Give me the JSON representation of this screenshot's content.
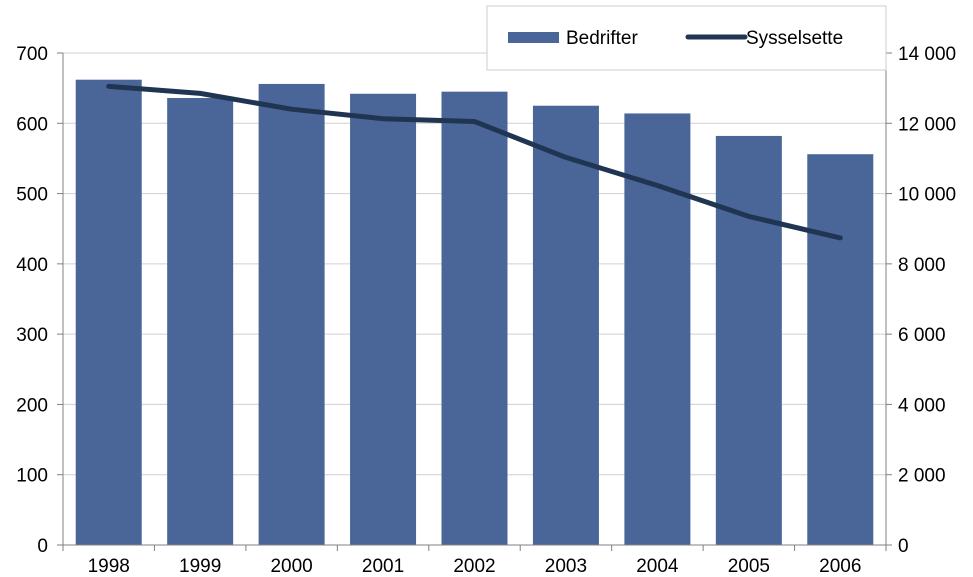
{
  "chart_data": {
    "type": "bar",
    "categories": [
      "1998",
      "1999",
      "2000",
      "2001",
      "2002",
      "2003",
      "2004",
      "2005",
      "2006"
    ],
    "series": [
      {
        "name": "Bedrifter",
        "type": "bar",
        "axis": "left",
        "color": "#4A6699",
        "values": [
          662,
          636,
          656,
          642,
          645,
          625,
          614,
          582,
          556
        ]
      },
      {
        "name": "Sysselsette",
        "type": "line",
        "axis": "right",
        "color": "#1F3552",
        "values": [
          13050,
          12850,
          12400,
          12130,
          12050,
          11030,
          10230,
          9350,
          8740
        ]
      }
    ],
    "ylim": [
      0,
      700
    ],
    "y2lim": [
      0,
      14000
    ],
    "yticks": [
      "0",
      "100",
      "200",
      "300",
      "400",
      "500",
      "600",
      "700"
    ],
    "y2ticks": [
      "0",
      "2 000",
      "4 000",
      "6 000",
      "8 000",
      "10 000",
      "12 000",
      "14 000"
    ],
    "grid": true,
    "legend_position": "top-right"
  }
}
